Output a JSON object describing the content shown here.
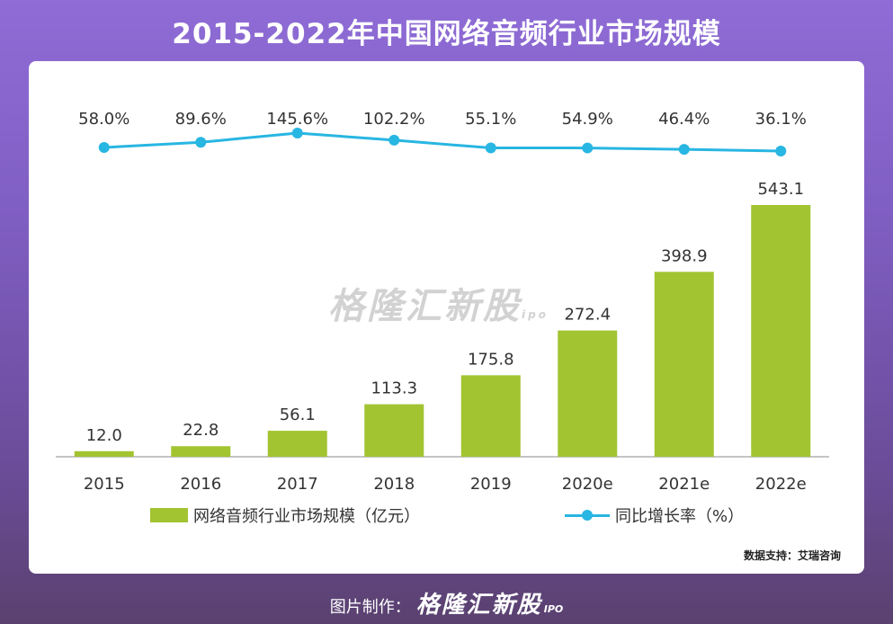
{
  "header": {
    "title": "2015-2022年中国网络音频行业市场规模"
  },
  "watermark": {
    "brand": "格隆汇新股",
    "sub": "ipo"
  },
  "source": {
    "text": "数据支持：艾瑞咨询"
  },
  "footer": {
    "prefix": "图片制作：",
    "brand": "格隆汇新股",
    "suffix": "IPO"
  },
  "colors": {
    "bar": "#a2c431",
    "line": "#28b6e2",
    "axis": "#888888",
    "text": "#333333"
  },
  "chart_data": {
    "type": "bar",
    "categories": [
      "2015",
      "2016",
      "2017",
      "2018",
      "2019",
      "2020e",
      "2021e",
      "2022e"
    ],
    "series": [
      {
        "name": "网络音频行业市场规模（亿元）",
        "type": "bar",
        "values": [
          12.0,
          22.8,
          56.1,
          113.3,
          175.8,
          272.4,
          398.9,
          543.1
        ],
        "labels": [
          "12.0",
          "22.8",
          "56.1",
          "113.3",
          "175.8",
          "272.4",
          "398.9",
          "543.1"
        ]
      },
      {
        "name": "同比增长率（%）",
        "type": "line",
        "values": [
          58.0,
          89.6,
          145.6,
          102.2,
          55.1,
          54.9,
          46.4,
          36.1
        ],
        "labels": [
          "58.0%",
          "89.6%",
          "145.6%",
          "102.2%",
          "55.1%",
          "54.9%",
          "46.4%",
          "36.1%"
        ]
      }
    ],
    "legend": {
      "position": "bottom"
    },
    "grid": false
  }
}
